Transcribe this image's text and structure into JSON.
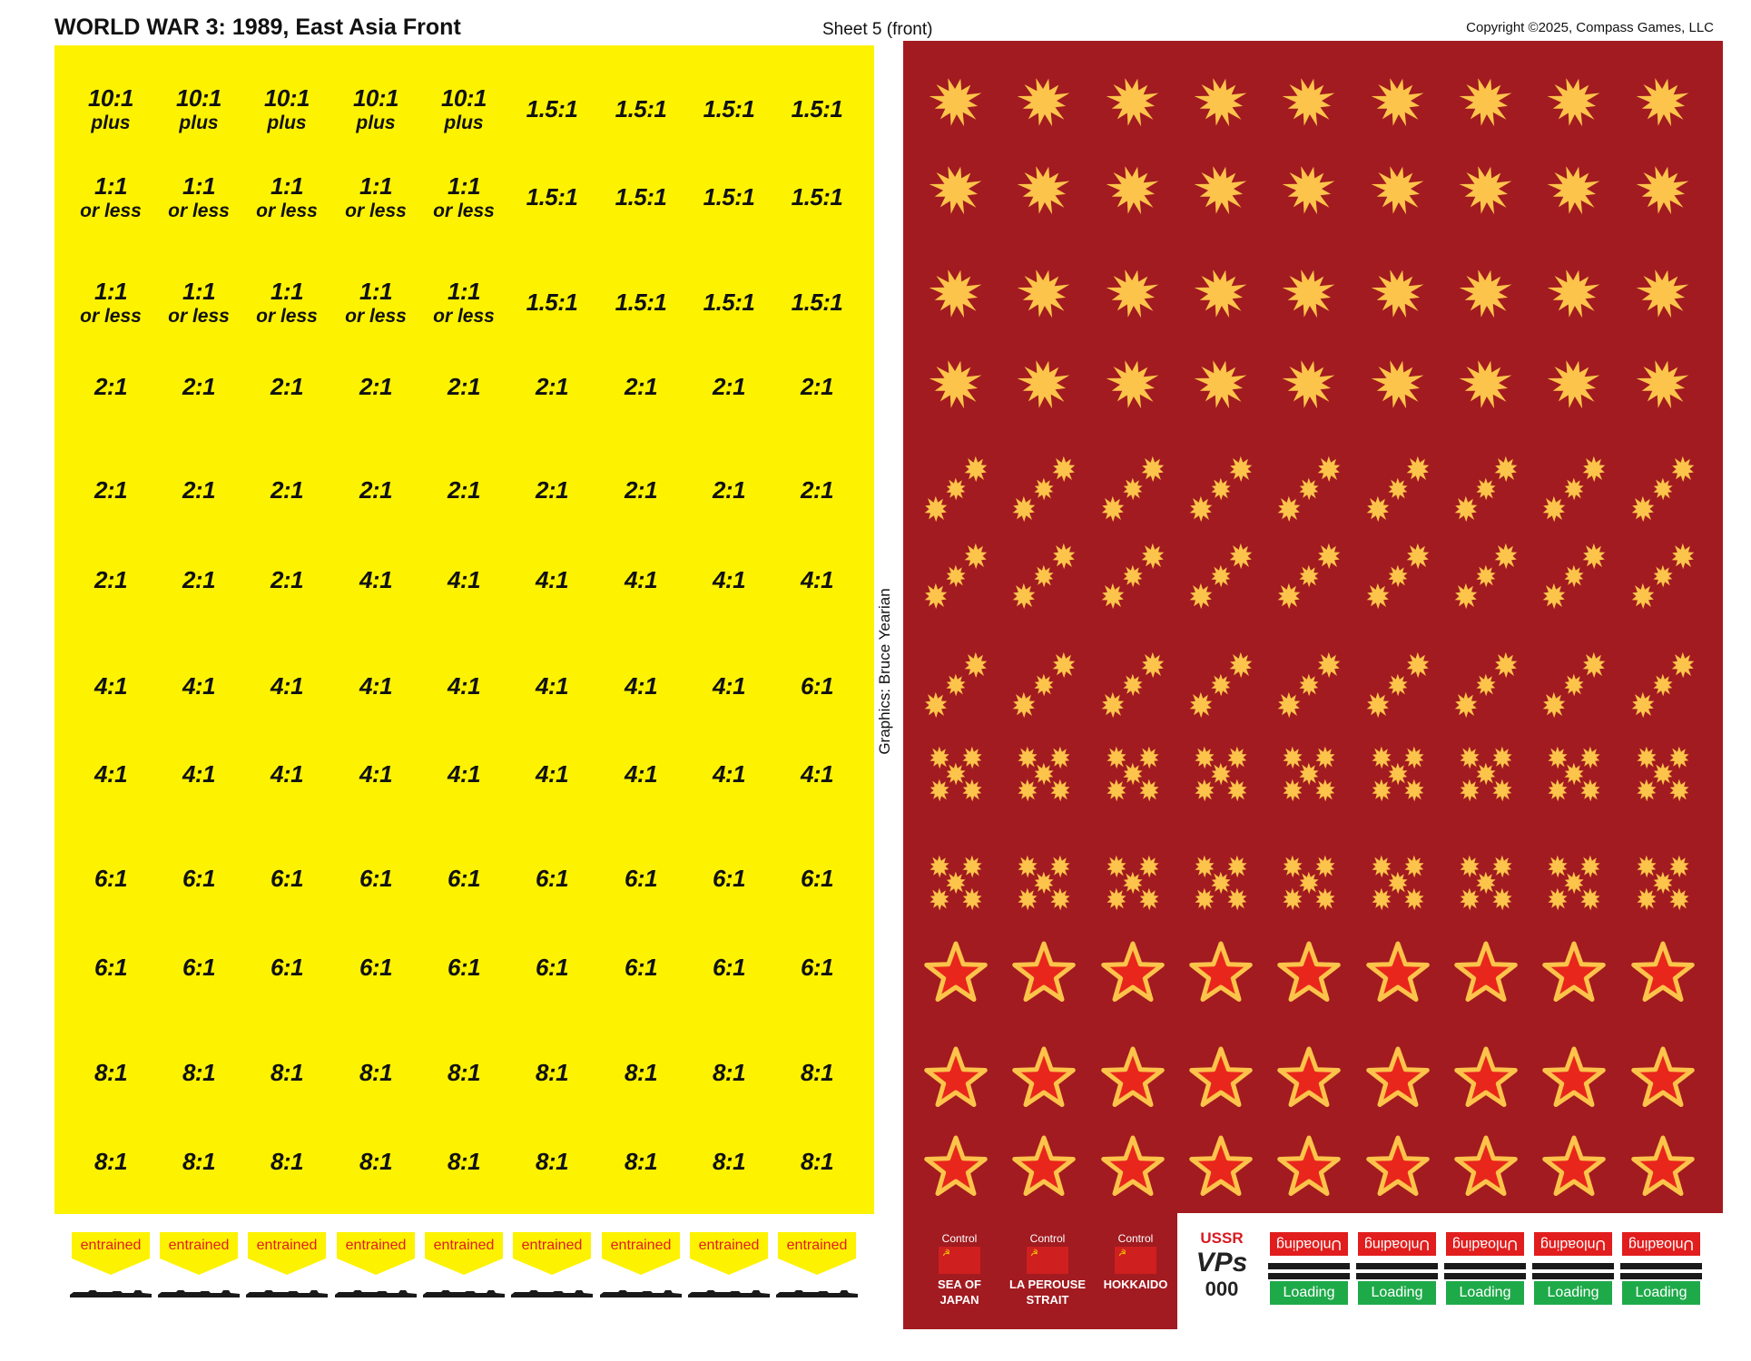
{
  "header": {
    "title": "WORLD WAR 3: 1989, East Asia Front",
    "sheet": "Sheet 5 (front)",
    "copyright": "Copyright ©2025, Compass Games, LLC",
    "credit": "Graphics: Bruce Yearian"
  },
  "odds_rows": [
    [
      "10:1|plus",
      "10:1|plus",
      "10:1|plus",
      "10:1|plus",
      "10:1|plus",
      "1.5:1",
      "1.5:1",
      "1.5:1",
      "1.5:1"
    ],
    [
      "1:1|or less",
      "1:1|or less",
      "1:1|or less",
      "1:1|or less",
      "1:1|or less",
      "1.5:1",
      "1.5:1",
      "1.5:1",
      "1.5:1"
    ],
    [
      "1:1|or less",
      "1:1|or less",
      "1:1|or less",
      "1:1|or less",
      "1:1|or less",
      "1.5:1",
      "1.5:1",
      "1.5:1",
      "1.5:1"
    ],
    [
      "2:1",
      "2:1",
      "2:1",
      "2:1",
      "2:1",
      "2:1",
      "2:1",
      "2:1",
      "2:1"
    ],
    [
      "2:1",
      "2:1",
      "2:1",
      "2:1",
      "2:1",
      "2:1",
      "2:1",
      "2:1",
      "2:1"
    ],
    [
      "2:1",
      "2:1",
      "2:1",
      "4:1",
      "4:1",
      "4:1",
      "4:1",
      "4:1",
      "4:1"
    ],
    [
      "4:1",
      "4:1",
      "4:1",
      "4:1",
      "4:1",
      "4:1",
      "4:1",
      "4:1",
      "6:1"
    ],
    [
      "4:1",
      "4:1",
      "4:1",
      "4:1",
      "4:1",
      "4:1",
      "4:1",
      "4:1",
      "4:1"
    ],
    [
      "6:1",
      "6:1",
      "6:1",
      "6:1",
      "6:1",
      "6:1",
      "6:1",
      "6:1",
      "6:1"
    ],
    [
      "6:1",
      "6:1",
      "6:1",
      "6:1",
      "6:1",
      "6:1",
      "6:1",
      "6:1",
      "6:1"
    ],
    [
      "8:1",
      "8:1",
      "8:1",
      "8:1",
      "8:1",
      "8:1",
      "8:1",
      "8:1",
      "8:1"
    ],
    [
      "8:1",
      "8:1",
      "8:1",
      "8:1",
      "8:1",
      "8:1",
      "8:1",
      "8:1",
      "8:1"
    ]
  ],
  "marker_rows": [
    "burst",
    "burst",
    "burst",
    "burst",
    "triple-burst",
    "triple-burst",
    "triple-burst",
    "quad-burst",
    "quad-burst",
    "star",
    "star",
    "star"
  ],
  "colors": {
    "yellow": "#fdf200",
    "sheet_red": "#a21b20",
    "burst": "#fcc44a",
    "star_fill": "#e8261c",
    "star_outline": "#fcc44a",
    "entrained_text": "#e11d1d",
    "unloading": "#e11d1d",
    "loading": "#1faa4a"
  },
  "entrained": {
    "label": "entrained",
    "count": 9
  },
  "control_markers": [
    {
      "label": "Control",
      "name_line1": "SEA OF",
      "name_line2": "JAPAN"
    },
    {
      "label": "Control",
      "name_line1": "LA PEROUSE",
      "name_line2": "STRAIT"
    },
    {
      "label": "Control",
      "name_line1": "HOKKAIDO",
      "name_line2": ""
    }
  ],
  "vp_marker": {
    "side": "USSR",
    "label": "VPs",
    "value": "000"
  },
  "load_markers": [
    {
      "top": "Unloading",
      "bottom": "Loading"
    },
    {
      "top": "Unloading",
      "bottom": "Loading"
    },
    {
      "top": "Unloading",
      "bottom": "Loading"
    },
    {
      "top": "Unloading",
      "bottom": "Loading"
    },
    {
      "top": "Unloading",
      "bottom": "Loading"
    }
  ]
}
